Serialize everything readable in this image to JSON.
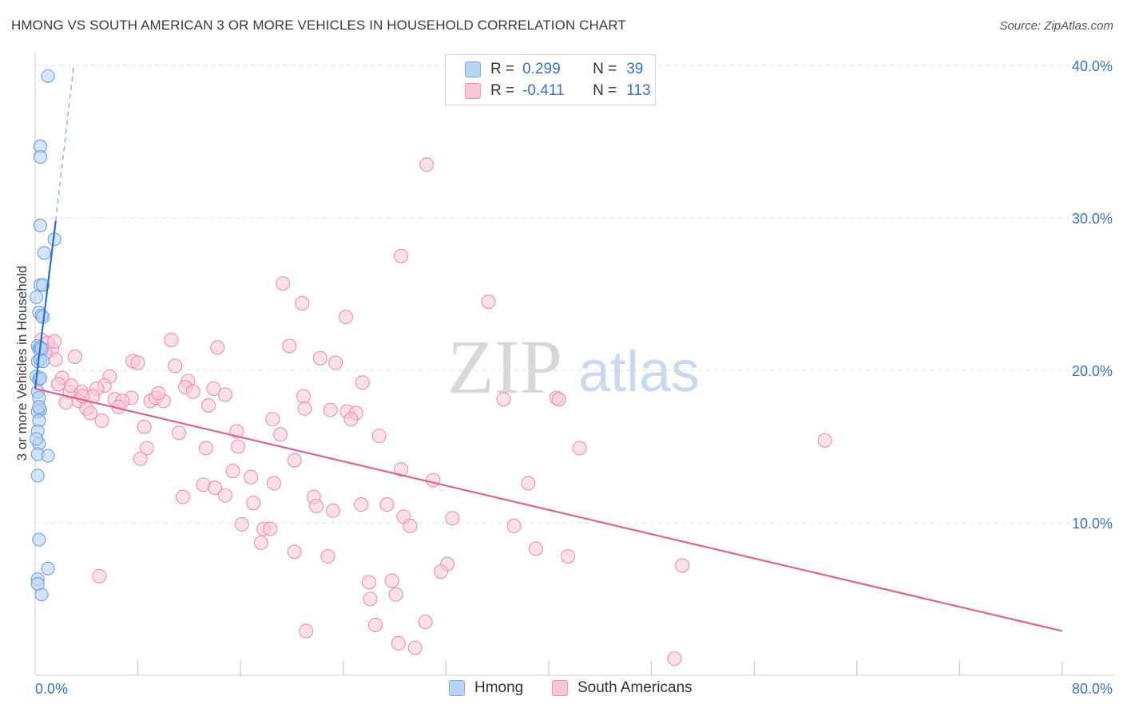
{
  "title": "HMONG VS SOUTH AMERICAN 3 OR MORE VEHICLES IN HOUSEHOLD CORRELATION CHART",
  "source": "Source: ZipAtlas.com",
  "watermark": {
    "zip": "ZIP",
    "atlas": "atlas"
  },
  "legend": {
    "rows": [
      {
        "r_label": "R =",
        "r_value": "0.299",
        "n_label": "N =",
        "n_value": "39",
        "fill": "#b9d3f5",
        "stroke": "#7eaae6"
      },
      {
        "r_label": "R =",
        "r_value": "-0.411",
        "n_label": "N =",
        "n_value": "113",
        "fill": "#f9c6d6",
        "stroke": "#ef8fb0"
      }
    ]
  },
  "bottom_legend": {
    "hmong": "Hmong",
    "south": "South Americans"
  },
  "colors": {
    "hmong_fill": "#b9d3f5",
    "hmong_stroke": "#6f9fe0",
    "hmong_line": "#2a6fd4",
    "south_fill": "#f9c6d6",
    "south_stroke": "#ec8fae",
    "south_line": "#e0608f",
    "tick_label": "#3a72c4",
    "grid": "#dddddd"
  },
  "chart_data": {
    "type": "scatter",
    "title": "HMONG VS SOUTH AMERICAN 3 OR MORE VEHICLES IN HOUSEHOLD CORRELATION CHART",
    "xlabel": "",
    "ylabel": "3 or more Vehicles in Household",
    "xlim": [
      0,
      80
    ],
    "ylim": [
      0,
      42
    ],
    "x_tick_labels": [
      "0.0%",
      "80.0%"
    ],
    "y_ticks": [
      10,
      20,
      30,
      40
    ],
    "y_tick_labels": [
      "10.0%",
      "20.0%",
      "30.0%",
      "40.0%"
    ],
    "grid": true,
    "series": [
      {
        "name": "Hmong",
        "points": [
          [
            1.0,
            39.3
          ],
          [
            0.4,
            34.7
          ],
          [
            0.4,
            34.0
          ],
          [
            0.4,
            29.5
          ],
          [
            1.5,
            28.6
          ],
          [
            0.7,
            27.7
          ],
          [
            0.4,
            25.6
          ],
          [
            0.6,
            25.6
          ],
          [
            0.1,
            24.8
          ],
          [
            0.3,
            23.8
          ],
          [
            0.5,
            23.6
          ],
          [
            0.6,
            23.5
          ],
          [
            0.2,
            21.6
          ],
          [
            0.3,
            21.4
          ],
          [
            0.4,
            21.5
          ],
          [
            0.5,
            21.4
          ],
          [
            0.2,
            20.6
          ],
          [
            0.4,
            20.7
          ],
          [
            0.6,
            20.6
          ],
          [
            0.1,
            19.6
          ],
          [
            0.3,
            19.4
          ],
          [
            0.2,
            18.6
          ],
          [
            0.3,
            18.2
          ],
          [
            0.4,
            17.4
          ],
          [
            0.2,
            17.3
          ],
          [
            0.3,
            16.7
          ],
          [
            0.2,
            16.0
          ],
          [
            0.3,
            15.2
          ],
          [
            0.2,
            14.5
          ],
          [
            1.0,
            14.4
          ],
          [
            0.2,
            13.1
          ],
          [
            0.3,
            8.9
          ],
          [
            1.0,
            7.0
          ],
          [
            0.2,
            6.3
          ],
          [
            0.5,
            5.3
          ],
          [
            0.2,
            6.0
          ],
          [
            0.3,
            17.6
          ],
          [
            0.4,
            19.5
          ],
          [
            0.1,
            15.5
          ]
        ]
      },
      {
        "name": "South Americans",
        "points": [
          [
            30.5,
            33.5
          ],
          [
            28.5,
            27.5
          ],
          [
            19.3,
            25.7
          ],
          [
            35.3,
            24.5
          ],
          [
            20.8,
            24.4
          ],
          [
            24.2,
            23.5
          ],
          [
            0.5,
            22.0
          ],
          [
            1.0,
            21.8
          ],
          [
            1.3,
            21.4
          ],
          [
            1.6,
            20.7
          ],
          [
            10.6,
            22.0
          ],
          [
            14.2,
            21.5
          ],
          [
            19.8,
            21.6
          ],
          [
            23.4,
            20.5
          ],
          [
            3.1,
            20.9
          ],
          [
            7.6,
            20.6
          ],
          [
            8.0,
            20.5
          ],
          [
            10.9,
            20.3
          ],
          [
            2.1,
            19.5
          ],
          [
            1.8,
            19.1
          ],
          [
            5.8,
            19.6
          ],
          [
            5.4,
            19.0
          ],
          [
            11.9,
            19.3
          ],
          [
            11.7,
            18.9
          ],
          [
            13.9,
            18.8
          ],
          [
            14.8,
            18.4
          ],
          [
            12.3,
            18.6
          ],
          [
            2.7,
            18.6
          ],
          [
            3.6,
            18.6
          ],
          [
            4.8,
            18.8
          ],
          [
            7.5,
            18.2
          ],
          [
            6.2,
            18.1
          ],
          [
            6.8,
            18.0
          ],
          [
            9.0,
            18.0
          ],
          [
            9.4,
            18.2
          ],
          [
            10.0,
            18.0
          ],
          [
            3.4,
            18.0
          ],
          [
            2.4,
            17.9
          ],
          [
            4.0,
            17.5
          ],
          [
            4.3,
            17.2
          ],
          [
            6.5,
            17.6
          ],
          [
            20.9,
            18.3
          ],
          [
            23.0,
            17.4
          ],
          [
            18.5,
            16.8
          ],
          [
            21.0,
            17.5
          ],
          [
            24.3,
            17.3
          ],
          [
            25.0,
            17.2
          ],
          [
            24.6,
            16.8
          ],
          [
            36.5,
            18.1
          ],
          [
            40.6,
            18.2
          ],
          [
            40.8,
            18.1
          ],
          [
            25.5,
            19.2
          ],
          [
            5.2,
            16.7
          ],
          [
            8.5,
            16.3
          ],
          [
            11.2,
            15.9
          ],
          [
            13.3,
            14.9
          ],
          [
            19.1,
            15.8
          ],
          [
            15.7,
            16.0
          ],
          [
            15.8,
            15.0
          ],
          [
            26.8,
            15.7
          ],
          [
            42.4,
            14.9
          ],
          [
            61.5,
            15.4
          ],
          [
            8.7,
            14.9
          ],
          [
            8.2,
            14.2
          ],
          [
            20.2,
            14.1
          ],
          [
            15.4,
            13.4
          ],
          [
            16.8,
            13.0
          ],
          [
            28.5,
            13.5
          ],
          [
            31.0,
            12.8
          ],
          [
            13.1,
            12.5
          ],
          [
            14.0,
            12.3
          ],
          [
            18.6,
            12.6
          ],
          [
            38.4,
            12.6
          ],
          [
            11.5,
            11.7
          ],
          [
            14.8,
            11.8
          ],
          [
            17.0,
            11.3
          ],
          [
            21.7,
            11.7
          ],
          [
            21.9,
            11.1
          ],
          [
            25.4,
            11.2
          ],
          [
            27.4,
            11.2
          ],
          [
            23.2,
            10.8
          ],
          [
            32.5,
            10.3
          ],
          [
            28.7,
            10.4
          ],
          [
            29.2,
            9.8
          ],
          [
            16.1,
            9.9
          ],
          [
            17.8,
            9.6
          ],
          [
            18.3,
            9.6
          ],
          [
            37.3,
            9.8
          ],
          [
            17.6,
            8.7
          ],
          [
            20.2,
            8.1
          ],
          [
            22.8,
            7.8
          ],
          [
            39.0,
            8.3
          ],
          [
            41.5,
            7.8
          ],
          [
            50.4,
            7.2
          ],
          [
            32.1,
            7.3
          ],
          [
            31.6,
            6.8
          ],
          [
            5.0,
            6.5
          ],
          [
            26.0,
            6.1
          ],
          [
            27.8,
            6.2
          ],
          [
            26.1,
            5.0
          ],
          [
            28.1,
            5.3
          ],
          [
            26.5,
            3.3
          ],
          [
            30.4,
            3.5
          ],
          [
            21.1,
            2.9
          ],
          [
            28.3,
            2.1
          ],
          [
            29.6,
            1.8
          ],
          [
            49.8,
            1.1
          ],
          [
            22.2,
            20.8
          ],
          [
            1.5,
            21.9
          ],
          [
            0.8,
            21.1
          ],
          [
            2.8,
            19.0
          ],
          [
            4.5,
            18.3
          ],
          [
            9.6,
            18.5
          ],
          [
            13.5,
            17.7
          ],
          [
            3.7,
            18.3
          ]
        ]
      }
    ],
    "trend_lines": [
      {
        "series": "Hmong",
        "x": [
          0.0,
          1.6
        ],
        "y": [
          18.8,
          29.8
        ],
        "dashed_extension_to": [
          3.0,
          40.0
        ]
      },
      {
        "series": "South Americans",
        "x": [
          0.0,
          80.0
        ],
        "y": [
          18.8,
          2.9
        ]
      }
    ]
  }
}
